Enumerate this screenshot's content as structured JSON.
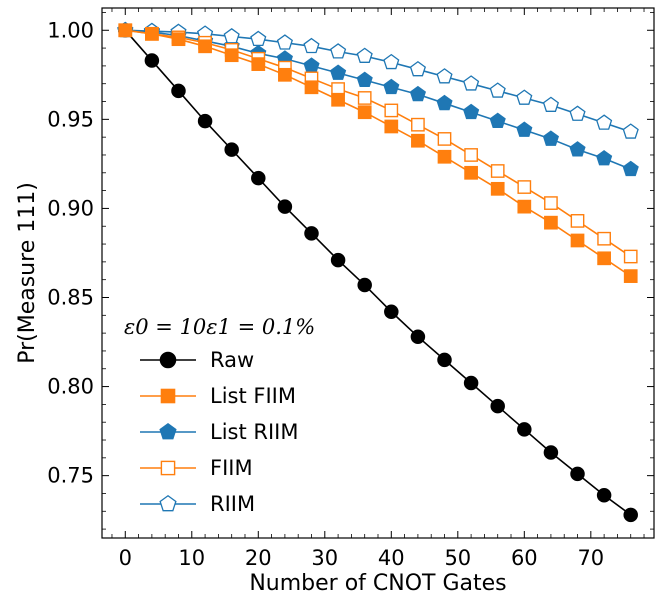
{
  "chart_data": {
    "type": "line",
    "xlabel": "Number of CNOT Gates",
    "ylabel": "Pr(Measure 111)",
    "xlim": [
      -3.5,
      79.5
    ],
    "ylim": [
      0.715,
      1.0125
    ],
    "x_ticks": [
      0,
      10,
      20,
      30,
      40,
      50,
      60,
      70
    ],
    "y_ticks": [
      0.75,
      0.8,
      0.85,
      0.9,
      0.95,
      1.0
    ],
    "x_tick_labels": [
      "0",
      "10",
      "20",
      "30",
      "40",
      "50",
      "60",
      "70"
    ],
    "y_tick_labels": [
      "0.75",
      "0.80",
      "0.85",
      "0.90",
      "0.95",
      "1.00"
    ],
    "grid": false,
    "legend_position": "lower-left",
    "legend_title": "ε0 = 10ε1 = 0.1%",
    "x": [
      0,
      4,
      8,
      12,
      16,
      20,
      24,
      28,
      32,
      36,
      40,
      44,
      48,
      52,
      56,
      60,
      64,
      68,
      72,
      76
    ],
    "series": [
      {
        "name": "Raw",
        "color": "#000000",
        "marker": "circle",
        "filled": true,
        "values": [
          1.0,
          0.983,
          0.966,
          0.949,
          0.933,
          0.917,
          0.901,
          0.886,
          0.871,
          0.857,
          0.842,
          0.828,
          0.815,
          0.802,
          0.789,
          0.776,
          0.763,
          0.751,
          0.739,
          0.728
        ]
      },
      {
        "name": "List FIIM",
        "color": "#ff7f0e",
        "marker": "square",
        "filled": true,
        "values": [
          1.0,
          0.998,
          0.995,
          0.991,
          0.986,
          0.981,
          0.975,
          0.968,
          0.961,
          0.954,
          0.946,
          0.938,
          0.929,
          0.92,
          0.911,
          0.901,
          0.892,
          0.882,
          0.872,
          0.862
        ]
      },
      {
        "name": "List RIIM",
        "color": "#1f77b4",
        "marker": "pentagon",
        "filled": true,
        "values": [
          1.0,
          0.999,
          0.997,
          0.994,
          0.991,
          0.987,
          0.984,
          0.98,
          0.976,
          0.972,
          0.968,
          0.964,
          0.959,
          0.954,
          0.949,
          0.944,
          0.939,
          0.933,
          0.928,
          0.922
        ]
      },
      {
        "name": "FIIM",
        "color": "#ff7f0e",
        "marker": "square",
        "filled": false,
        "values": [
          1.0,
          0.998,
          0.996,
          0.993,
          0.989,
          0.984,
          0.979,
          0.973,
          0.967,
          0.962,
          0.955,
          0.947,
          0.939,
          0.93,
          0.921,
          0.912,
          0.903,
          0.893,
          0.883,
          0.873
        ]
      },
      {
        "name": "RIIM",
        "color": "#1f77b4",
        "marker": "pentagon",
        "filled": false,
        "values": [
          1.0,
          0.9995,
          0.999,
          0.998,
          0.9965,
          0.995,
          0.993,
          0.991,
          0.988,
          0.9855,
          0.982,
          0.978,
          0.974,
          0.97,
          0.966,
          0.962,
          0.958,
          0.953,
          0.948,
          0.943
        ]
      }
    ]
  }
}
